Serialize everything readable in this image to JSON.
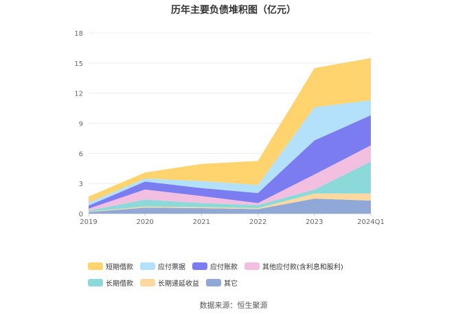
{
  "chart_data": {
    "type": "area",
    "stacked": true,
    "title": "历年主要负债堆积图（亿元）",
    "categories": [
      "2019",
      "2020",
      "2021",
      "2022",
      "2023",
      "2024Q1"
    ],
    "ylim": [
      0,
      18
    ],
    "yticks": [
      0,
      3,
      6,
      9,
      12,
      15,
      18
    ],
    "grid": true,
    "legend_position": "bottom",
    "series": [
      {
        "name": "其它",
        "color": "#8fa8d8",
        "values": [
          0.15,
          0.6,
          0.55,
          0.45,
          1.5,
          1.3
        ]
      },
      {
        "name": "长期递延收益",
        "color": "#fdd9a0",
        "values": [
          0.05,
          0.1,
          0.1,
          0.1,
          0.5,
          0.7
        ]
      },
      {
        "name": "长期借款",
        "color": "#8cd9d9",
        "values": [
          0.1,
          0.7,
          0.4,
          0.3,
          0.4,
          3.2
        ]
      },
      {
        "name": "其他应付款(含利息和股利)",
        "color": "#f2bfe0",
        "values": [
          0.2,
          1.0,
          0.7,
          0.2,
          1.5,
          1.6
        ]
      },
      {
        "name": "应付账款",
        "color": "#7b7cf0",
        "values": [
          0.3,
          0.8,
          0.8,
          1.0,
          3.4,
          3.0
        ]
      },
      {
        "name": "应付票据",
        "color": "#b3e1fb",
        "values": [
          0.3,
          0.3,
          0.7,
          0.8,
          3.3,
          1.5
        ]
      },
      {
        "name": "短期借款",
        "color": "#ffd36e",
        "values": [
          0.6,
          0.6,
          1.7,
          2.4,
          3.9,
          4.2
        ]
      }
    ],
    "legend_order": [
      "短期借款",
      "应付票据",
      "应付账款",
      "其他应付款(含利息和股利)",
      "长期借款",
      "长期递延收益",
      "其它"
    ]
  },
  "source": "数据来源：恒生聚源"
}
